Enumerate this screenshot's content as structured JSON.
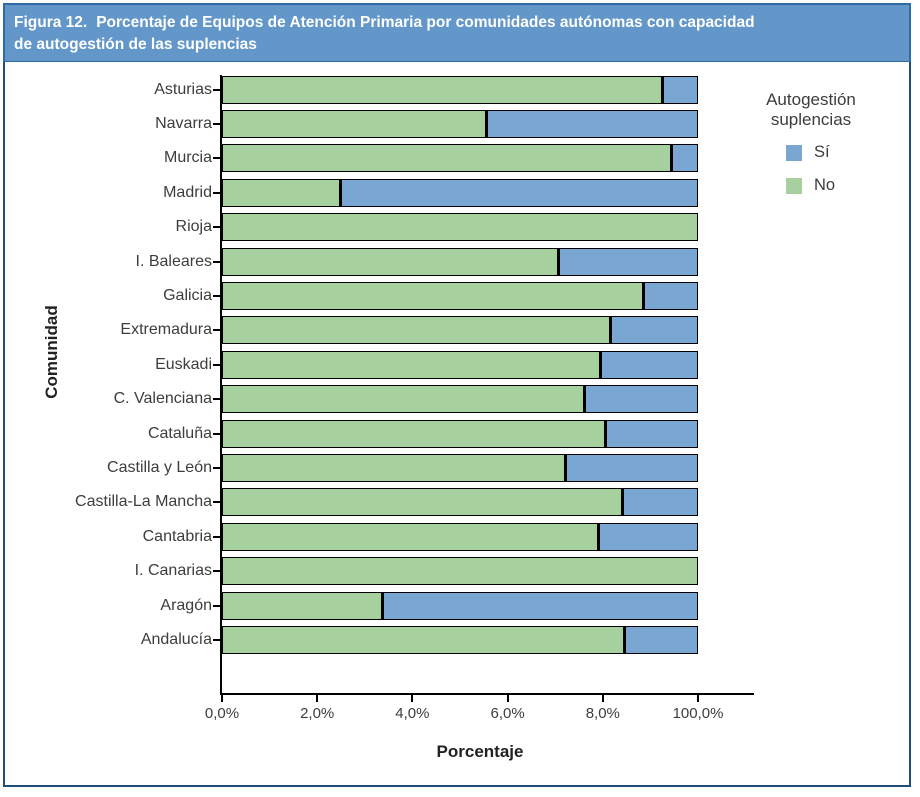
{
  "figure": {
    "number_label": "Figura 12.",
    "title_line1": "Porcentaje de Equipos de Atención Primaria por comunidades autónomas con capacidad",
    "title_line2": "de autogestión de las suplencias"
  },
  "legend": {
    "title_line1": "Autogestión",
    "title_line2": "suplencias",
    "items": [
      {
        "label": "Sí",
        "color": "#7aa6d4"
      },
      {
        "label": "No",
        "color": "#a6d19e"
      }
    ]
  },
  "colors": {
    "si_blue": "#7aa6d4",
    "no_green": "#a6d19e",
    "titlebar_blue": "#6397c9",
    "frame_border": "#1e4e79",
    "bar_border": "#000000"
  },
  "chart_data": {
    "type": "bar",
    "orientation": "horizontal",
    "stacked": true,
    "xlabel": "Porcentaje",
    "ylabel": "Comunidad",
    "xlim": [
      0,
      100
    ],
    "x_tick_labels": [
      "0,0%",
      "2,0%",
      "4,0%",
      "6,0%",
      "8,0%",
      "100,0%"
    ],
    "grid": false,
    "legend_position": "right",
    "legend_title": "Autogestión suplencias",
    "categories": [
      "Asturias",
      "Navarra",
      "Murcia",
      "Madrid",
      "Rioja",
      "I. Baleares",
      "Galicia",
      "Extremadura",
      "Euskadi",
      "C. Valenciana",
      "Cataluña",
      "Castilla y León",
      "Castilla-La Mancha",
      "Cantabria",
      "I. Canarias",
      "Aragón",
      "Andalucía"
    ],
    "series": [
      {
        "name": "No",
        "color": "#a6d19e",
        "values": [
          93,
          56,
          95,
          25,
          100,
          71,
          89,
          82,
          80,
          76.5,
          81,
          72.5,
          84.5,
          79.5,
          100,
          34,
          85
        ]
      },
      {
        "name": "Sí",
        "color": "#7aa6d4",
        "values": [
          7,
          44,
          5,
          75,
          0,
          29,
          11,
          18,
          20,
          23.5,
          19,
          27.5,
          15.5,
          20.5,
          0,
          66,
          15
        ]
      }
    ]
  }
}
